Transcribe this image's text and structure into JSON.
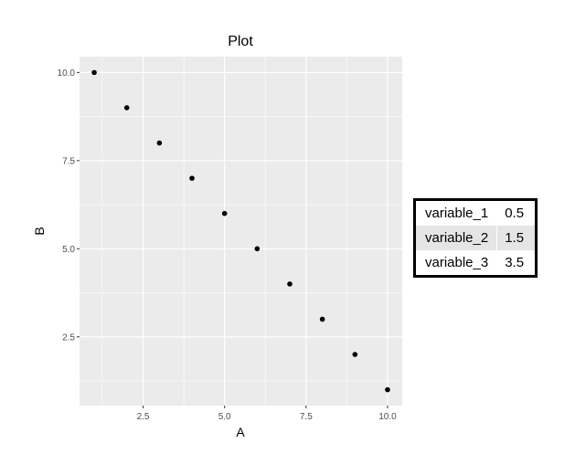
{
  "chart_data": {
    "type": "scatter",
    "title": "Plot",
    "xlabel": "A",
    "ylabel": "B",
    "x": [
      1,
      2,
      3,
      4,
      5,
      6,
      7,
      8,
      9,
      10
    ],
    "y": [
      10,
      9,
      8,
      7,
      6,
      5,
      4,
      3,
      2,
      1
    ],
    "xlim": [
      0.55,
      10.45
    ],
    "ylim": [
      0.55,
      10.45
    ],
    "x_ticks": [
      2.5,
      5.0,
      7.5,
      10.0
    ],
    "x_tick_labels": [
      "2.5",
      "5.0",
      "7.5",
      "10.0"
    ],
    "y_ticks": [
      2.5,
      5.0,
      7.5,
      10.0
    ],
    "y_tick_labels": [
      "2.5",
      "5.0",
      "7.5",
      "10.0"
    ],
    "grid": true,
    "colors": {
      "panel": "#ebebeb",
      "grid": "#ffffff",
      "point": "#000000"
    }
  },
  "side_table": {
    "rows": [
      {
        "name": "variable_1",
        "value": "0.5"
      },
      {
        "name": "variable_2",
        "value": "1.5"
      },
      {
        "name": "variable_3",
        "value": "3.5"
      }
    ]
  }
}
